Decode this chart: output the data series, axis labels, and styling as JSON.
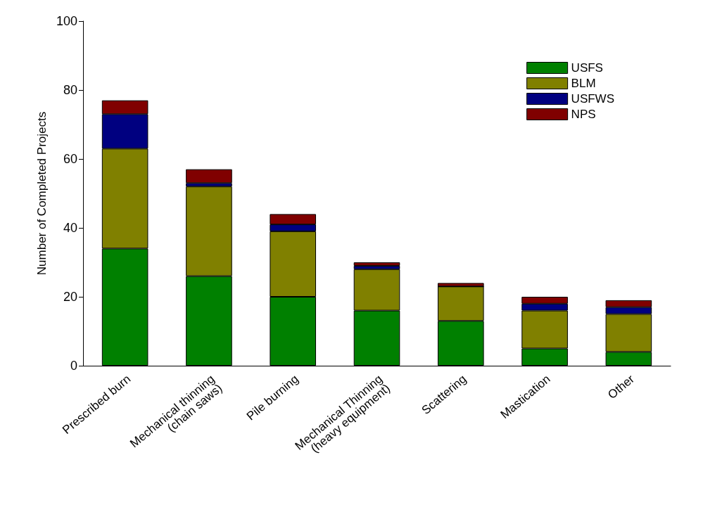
{
  "chart_data": {
    "type": "bar",
    "stacked": true,
    "ylabel": "Number of Completed Projects",
    "categories": [
      "Prescribed burn",
      "Mechanical thinning\n(chain saws)",
      "Pile burning",
      "Mechanical Thinning\n(heavy equipment)",
      "Scattering",
      "Mastication",
      "Other"
    ],
    "series": [
      {
        "name": "USFS",
        "color": "#008000",
        "values": [
          34,
          26,
          20,
          16,
          13,
          5,
          4
        ]
      },
      {
        "name": "BLM",
        "color": "#808000",
        "values": [
          29,
          26,
          19,
          12,
          10,
          11,
          11
        ]
      },
      {
        "name": "USFWS",
        "color": "#000080",
        "values": [
          10,
          1,
          2,
          1,
          0,
          2,
          2
        ]
      },
      {
        "name": "NPS",
        "color": "#800000",
        "values": [
          4,
          4,
          3,
          1,
          1,
          2,
          2
        ]
      }
    ],
    "ylim": [
      0,
      100
    ],
    "yticks": [
      0,
      20,
      40,
      60,
      80,
      100
    ],
    "grid": false,
    "legend": "top right"
  }
}
